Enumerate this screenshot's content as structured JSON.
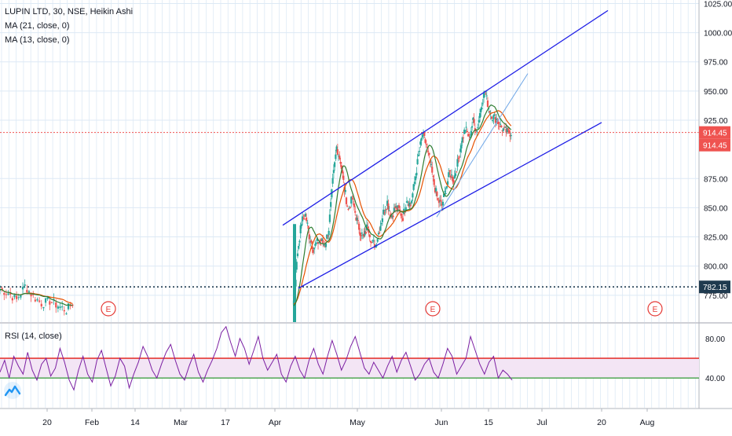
{
  "chart_data": [
    {
      "type": "candlestick",
      "style": "Heikin Ashi",
      "title": "LUPIN LTD, 30, NSE, Heikin Ashi",
      "indicators": [
        "MA (21, close, 0)",
        "MA (13, close, 0)"
      ],
      "ylim": [
        752,
        1028
      ],
      "y_ticks": [
        "775.00",
        "800.00",
        "825.00",
        "850.00",
        "875.00",
        "925.00",
        "950.00",
        "975.00",
        "1000.00",
        "1025.00"
      ],
      "x_ticks": [
        "20",
        "Feb",
        "14",
        "Mar",
        "17",
        "Apr",
        "May",
        "Jun",
        "15",
        "Jul",
        "20",
        "Aug"
      ],
      "price_labels": [
        {
          "value": 914.45,
          "text": "914.45",
          "color": "#ef5350"
        },
        {
          "value": 914.45,
          "text": "914.45",
          "color": "#ef5350"
        },
        {
          "value": 782.15,
          "text": "782.15",
          "color": "#1f3a4f"
        }
      ],
      "last_price": 914.45,
      "support_level": 782.15,
      "earnings_markers": [
        "E",
        "E",
        "E"
      ],
      "trend_channel": {
        "upper": [
          [
            "Apr",
            835
          ],
          [
            "Aug",
            1019
          ]
        ],
        "lower": [
          [
            "Apr",
            781
          ],
          [
            "Jul",
            923
          ]
        ],
        "inner": [
          [
            "Jun",
            842
          ],
          [
            "Jun end",
            965
          ]
        ]
      },
      "price_path": [
        [
          "Jan",
          780
        ],
        [
          "Jan",
          777
        ],
        [
          "Jan",
          771
        ],
        [
          "Jan",
          783
        ],
        [
          "Jan",
          774
        ],
        [
          "Jan",
          768
        ],
        [
          "Jan",
          770
        ],
        [
          "Jan",
          766
        ],
        [
          "Jan",
          762
        ],
        [
          "Apr",
          770
        ],
        [
          "Apr",
          812
        ],
        [
          "Apr",
          838
        ],
        [
          "Apr",
          844
        ],
        [
          "Apr",
          826
        ],
        [
          "Apr",
          815
        ],
        [
          "Apr",
          820
        ],
        [
          "Apr",
          822
        ],
        [
          "Apr",
          818
        ],
        [
          "Apr",
          832
        ],
        [
          "Apr",
          872
        ],
        [
          "Apr",
          902
        ],
        [
          "Apr",
          890
        ],
        [
          "Apr",
          866
        ],
        [
          "Apr",
          848
        ],
        [
          "Apr",
          858
        ],
        [
          "Apr",
          842
        ],
        [
          "Apr",
          830
        ],
        [
          "May",
          824
        ],
        [
          "May",
          836
        ],
        [
          "May",
          820
        ],
        [
          "May",
          818
        ],
        [
          "May",
          832
        ],
        [
          "May",
          846
        ],
        [
          "May",
          855
        ],
        [
          "May",
          842
        ],
        [
          "May",
          850
        ],
        [
          "May",
          848
        ],
        [
          "May",
          842
        ],
        [
          "May",
          858
        ],
        [
          "May",
          852
        ],
        [
          "May",
          872
        ],
        [
          "May",
          894
        ],
        [
          "May",
          913
        ],
        [
          "May",
          904
        ],
        [
          "May",
          888
        ],
        [
          "May",
          870
        ],
        [
          "May",
          856
        ],
        [
          "Jun",
          852
        ],
        [
          "Jun",
          866
        ],
        [
          "Jun",
          880
        ],
        [
          "Jun",
          874
        ],
        [
          "Jun",
          888
        ],
        [
          "Jun",
          906
        ],
        [
          "Jun",
          918
        ],
        [
          "Jun",
          910
        ],
        [
          "Jun",
          924
        ],
        [
          "Jun",
          916
        ],
        [
          "Jun",
          936
        ],
        [
          "Jun",
          950
        ],
        [
          "Jun",
          936
        ],
        [
          "Jun",
          928
        ],
        [
          "Jun",
          926
        ],
        [
          "Jun",
          920
        ],
        [
          "Jun",
          916
        ],
        [
          "Jun",
          914.45
        ]
      ]
    },
    {
      "type": "line",
      "title": "RSI (14, close)",
      "y_ticks": [
        "80.00",
        "40.00"
      ],
      "ylim": [
        10,
        95
      ],
      "overbought": 60,
      "oversold": 40,
      "series": [
        {
          "name": "RSI",
          "values": [
            46,
            58,
            40,
            62,
            52,
            44,
            66,
            48,
            38,
            54,
            60,
            42,
            50,
            70,
            56,
            38,
            28,
            48,
            62,
            44,
            36,
            58,
            68,
            50,
            32,
            42,
            60,
            52,
            30,
            44,
            56,
            72,
            62,
            48,
            40,
            54,
            66,
            74,
            58,
            44,
            38,
            52,
            64,
            46,
            36,
            48,
            58,
            70,
            86,
            92,
            76,
            62,
            80,
            70,
            54,
            68,
            82,
            60,
            48,
            56,
            64,
            44,
            36,
            52,
            62,
            48,
            40,
            58,
            70,
            54,
            44,
            62,
            78,
            64,
            48,
            58,
            72,
            82,
            66,
            50,
            44,
            56,
            48,
            40,
            52,
            62,
            46,
            58,
            66,
            52,
            38,
            44,
            54,
            60,
            46,
            40,
            54,
            70,
            62,
            44,
            52,
            60,
            82,
            68,
            54,
            44,
            56,
            62,
            40,
            48,
            44,
            38
          ]
        }
      ]
    }
  ],
  "colors": {
    "up": "#26a69a",
    "down": "#ef5350",
    "ma21": "#e65100",
    "ma13": "#2e7d32",
    "channel": "#1e1ee6",
    "inner_trend": "#6fa6e6",
    "rsi": "#7b1fa2",
    "rsi_band_fill": "#f3e5f5",
    "rsi_upper": "#e53935",
    "rsi_lower": "#43a047",
    "grid": "#dde9f5",
    "earnings": "#e53935"
  },
  "logo_icon": "tradingview-logo-icon"
}
